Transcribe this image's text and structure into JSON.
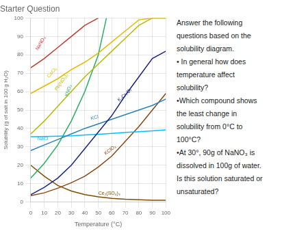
{
  "chart_data": {
    "type": "line",
    "title": "Starter Question",
    "xlabel": "Temperature (°C)",
    "ylabel": "Solubility (g of salt in 100 g H₂O)",
    "xlim": [
      0,
      100
    ],
    "ylim": [
      0,
      100
    ],
    "xticks": [
      0,
      10,
      20,
      30,
      40,
      50,
      60,
      70,
      80,
      90,
      100
    ],
    "yticks": [
      0,
      10,
      20,
      30,
      40,
      50,
      60,
      70,
      80,
      90,
      100
    ],
    "grid": true,
    "series": [
      {
        "color": "#c0392b",
        "x": [
          0,
          10,
          20,
          30,
          40,
          50
        ],
        "values": [
          73,
          78,
          84,
          90,
          96,
          100
        ]
      },
      {
        "color": "#e6b800",
        "x": [
          0,
          10,
          20,
          30,
          40,
          50,
          60,
          70,
          80,
          90,
          100
        ],
        "values": [
          59,
          63,
          67,
          72,
          76,
          81,
          87,
          93,
          99,
          100,
          100
        ]
      },
      {
        "color": "#b8b800",
        "x": [
          0,
          10,
          20,
          30,
          40,
          50,
          60,
          70,
          80,
          90,
          100
        ],
        "values": [
          37,
          44,
          52,
          60,
          68,
          75,
          82,
          89,
          96,
          100,
          100
        ]
      },
      {
        "color": "#27ae60",
        "x": [
          0,
          10,
          20,
          30,
          40,
          50,
          56
        ],
        "values": [
          13,
          21,
          31,
          44,
          60,
          80,
          100
        ]
      },
      {
        "color": "#1a237e",
        "x": [
          0,
          10,
          20,
          30,
          40,
          50,
          60,
          70,
          80,
          90,
          100
        ],
        "values": [
          4,
          8,
          13,
          20,
          29,
          38,
          47,
          58,
          68,
          78,
          82
        ]
      },
      {
        "color": "#2980b9",
        "x": [
          0,
          10,
          20,
          30,
          40,
          50,
          60,
          70,
          80,
          90,
          100
        ],
        "values": [
          28,
          31,
          34,
          37,
          40,
          42.5,
          45,
          47.5,
          50,
          52.5,
          56
        ]
      },
      {
        "color": "#00bfff",
        "x": [
          0,
          10,
          20,
          30,
          40,
          50,
          60,
          70,
          80,
          90,
          100
        ],
        "values": [
          35.5,
          35.6,
          35.8,
          36.0,
          36.4,
          36.8,
          37.3,
          37.8,
          38.2,
          38.7,
          39.2
        ]
      },
      {
        "color": "#8B4513",
        "x": [
          0,
          10,
          20,
          30,
          40,
          50,
          60,
          70,
          80,
          90,
          100
        ],
        "values": [
          3.5,
          5,
          7.5,
          10.5,
          14,
          19,
          25,
          33,
          41,
          50,
          59
        ]
      },
      {
        "color": "#7d4e00",
        "x": [
          0,
          10,
          20,
          30,
          40,
          50,
          60,
          70,
          80,
          90,
          100
        ],
        "values": [
          20,
          14,
          9,
          6,
          4,
          2.8,
          2.0,
          1.5,
          1.2,
          1.0,
          1.0
        ]
      }
    ],
    "annotations": [
      {
        "text": "NaNO₃",
        "x": 6,
        "y": 82,
        "color": "#c0392b"
      },
      {
        "text": "CaCl₂",
        "x": 14,
        "y": 67,
        "color": "#e6b800"
      },
      {
        "text": "Pb(NO₃)₂",
        "x": 20,
        "y": 60,
        "color": "#b8b800"
      },
      {
        "text": "KNO₃",
        "x": 28,
        "y": 57,
        "color": "#27ae60"
      },
      {
        "text": "K₂Cr₂O₇",
        "x": 66,
        "y": 54,
        "color": "#1a237e"
      },
      {
        "text": "KCl",
        "x": 45,
        "y": 44,
        "color": "#2980b9"
      },
      {
        "text": "NaCl",
        "x": 5,
        "y": 33,
        "color": "#00bfff"
      },
      {
        "text": "KClO₃",
        "x": 56,
        "y": 25,
        "color": "#8B4513"
      },
      {
        "text": "Ce₂(SO₄)₃",
        "x": 50,
        "y": 3.5,
        "color": "#7d4e00"
      }
    ],
    "side_text": [
      "Answer the following",
      "questions based on the",
      "solubility diagram.",
      "• In general how does",
      "temperature affect",
      "solubility?",
      "•Which compound shows",
      "the least change in",
      "solubility from 0°C to",
      "100°C?",
      "•At 30°, 90g of NaNO₃ is",
      "dissolved in 100g of water.",
      "Is this solution saturated or",
      "unsaturated?"
    ]
  }
}
